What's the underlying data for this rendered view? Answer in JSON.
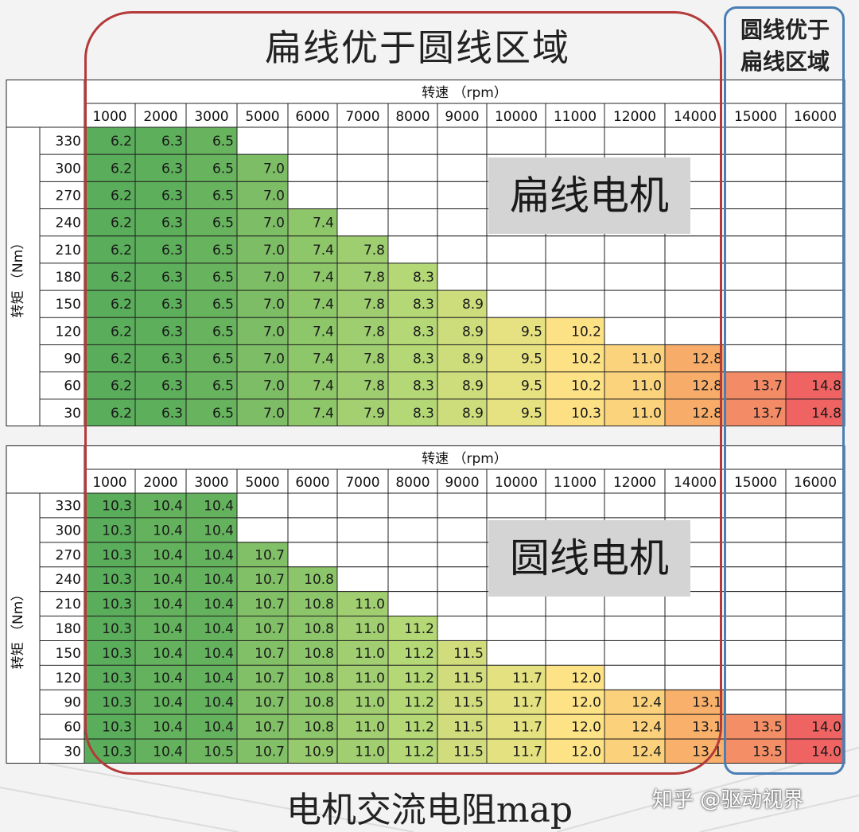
{
  "titles": {
    "main": "扁线优于圆线区域",
    "side_line1": "圆线优于",
    "side_line2": "扁线区域",
    "bottom": "电机交流电阻map",
    "watermark": "知乎 @驱动视界"
  },
  "overlay_labels": {
    "flat": "扁线电机",
    "round": "圆线电机"
  },
  "colors": {
    "green_dark": "#5aad5a",
    "green_light": "#b7d977",
    "yellow": "#fde586",
    "orange": "#f8b26a",
    "red": "#ef6363",
    "red_region_border": "#b43a3a",
    "blue_region_border": "#4a7fb5"
  },
  "chart_data": [
    {
      "type": "heatmap",
      "title": "",
      "overlay_label": "扁线电机",
      "xlabel": "转速 （rpm）",
      "ylabel": "转矩 （Nm）",
      "x": [
        "1000",
        "2000",
        "3000",
        "5000",
        "6000",
        "7000",
        "8000",
        "9000",
        "10000",
        "11000",
        "12000",
        "14000",
        "15000",
        "16000"
      ],
      "y": [
        "330",
        "300",
        "270",
        "240",
        "210",
        "180",
        "150",
        "120",
        "90",
        "60",
        "30"
      ],
      "values": [
        [
          "6.2",
          "6.3",
          "6.5",
          "",
          "",
          "",
          "",
          "",
          "",
          "",
          "",
          "",
          "",
          ""
        ],
        [
          "6.2",
          "6.3",
          "6.5",
          "7.0",
          "",
          "",
          "",
          "",
          "",
          "",
          "",
          "",
          "",
          ""
        ],
        [
          "6.2",
          "6.3",
          "6.5",
          "7.0",
          "",
          "",
          "",
          "",
          "",
          "",
          "",
          "",
          "",
          ""
        ],
        [
          "6.2",
          "6.3",
          "6.5",
          "7.0",
          "7.4",
          "",
          "",
          "",
          "",
          "",
          "",
          "",
          "",
          ""
        ],
        [
          "6.2",
          "6.3",
          "6.5",
          "7.0",
          "7.4",
          "7.8",
          "",
          "",
          "",
          "",
          "",
          "",
          "",
          ""
        ],
        [
          "6.2",
          "6.3",
          "6.5",
          "7.0",
          "7.4",
          "7.8",
          "8.3",
          "",
          "",
          "",
          "",
          "",
          "",
          ""
        ],
        [
          "6.2",
          "6.3",
          "6.5",
          "7.0",
          "7.4",
          "7.8",
          "8.3",
          "8.9",
          "",
          "",
          "",
          "",
          "",
          ""
        ],
        [
          "6.2",
          "6.3",
          "6.5",
          "7.0",
          "7.4",
          "7.8",
          "8.3",
          "8.9",
          "9.5",
          "10.2",
          "",
          "",
          "",
          ""
        ],
        [
          "6.2",
          "6.3",
          "6.5",
          "7.0",
          "7.4",
          "7.8",
          "8.3",
          "8.9",
          "9.5",
          "10.2",
          "11.0",
          "12.8",
          "",
          ""
        ],
        [
          "6.2",
          "6.3",
          "6.5",
          "7.0",
          "7.4",
          "7.8",
          "8.3",
          "8.9",
          "9.5",
          "10.2",
          "11.0",
          "12.8",
          "13.7",
          "14.8"
        ],
        [
          "6.2",
          "6.3",
          "6.5",
          "7.0",
          "7.4",
          "7.9",
          "8.3",
          "8.9",
          "9.5",
          "10.3",
          "11.0",
          "12.8",
          "13.7",
          "14.8"
        ]
      ]
    },
    {
      "type": "heatmap",
      "title": "",
      "overlay_label": "圆线电机",
      "xlabel": "转速 （rpm）",
      "ylabel": "转矩 （Nm）",
      "x": [
        "1000",
        "2000",
        "3000",
        "5000",
        "6000",
        "7000",
        "8000",
        "9000",
        "10000",
        "11000",
        "12000",
        "14000",
        "15000",
        "16000"
      ],
      "y": [
        "330",
        "300",
        "270",
        "240",
        "210",
        "180",
        "150",
        "120",
        "90",
        "60",
        "30"
      ],
      "values": [
        [
          "10.3",
          "10.4",
          "10.4",
          "",
          "",
          "",
          "",
          "",
          "",
          "",
          "",
          "",
          "",
          ""
        ],
        [
          "10.3",
          "10.4",
          "10.4",
          "",
          "",
          "",
          "",
          "",
          "",
          "",
          "",
          "",
          "",
          ""
        ],
        [
          "10.3",
          "10.4",
          "10.4",
          "10.7",
          "",
          "",
          "",
          "",
          "",
          "",
          "",
          "",
          "",
          ""
        ],
        [
          "10.3",
          "10.4",
          "10.4",
          "10.7",
          "10.8",
          "",
          "",
          "",
          "",
          "",
          "",
          "",
          "",
          ""
        ],
        [
          "10.3",
          "10.4",
          "10.4",
          "10.7",
          "10.8",
          "11.0",
          "",
          "",
          "",
          "",
          "",
          "",
          "",
          ""
        ],
        [
          "10.3",
          "10.4",
          "10.4",
          "10.7",
          "10.8",
          "11.0",
          "11.2",
          "",
          "",
          "",
          "",
          "",
          "",
          ""
        ],
        [
          "10.3",
          "10.4",
          "10.4",
          "10.7",
          "10.8",
          "11.0",
          "11.2",
          "11.5",
          "",
          "",
          "",
          "",
          "",
          ""
        ],
        [
          "10.3",
          "10.4",
          "10.4",
          "10.7",
          "10.8",
          "11.0",
          "11.2",
          "11.5",
          "11.7",
          "12.0",
          "",
          "",
          "",
          ""
        ],
        [
          "10.3",
          "10.4",
          "10.4",
          "10.7",
          "10.8",
          "11.0",
          "11.2",
          "11.5",
          "11.7",
          "12.0",
          "12.4",
          "13.1",
          "",
          ""
        ],
        [
          "10.3",
          "10.4",
          "10.4",
          "10.7",
          "10.8",
          "11.0",
          "11.2",
          "11.5",
          "11.7",
          "12.0",
          "12.4",
          "13.1",
          "13.5",
          "14.0"
        ],
        [
          "10.3",
          "10.4",
          "10.5",
          "10.7",
          "10.9",
          "11.0",
          "11.2",
          "11.5",
          "11.7",
          "12.0",
          "12.4",
          "13.1",
          "13.5",
          "14.0"
        ]
      ]
    }
  ]
}
